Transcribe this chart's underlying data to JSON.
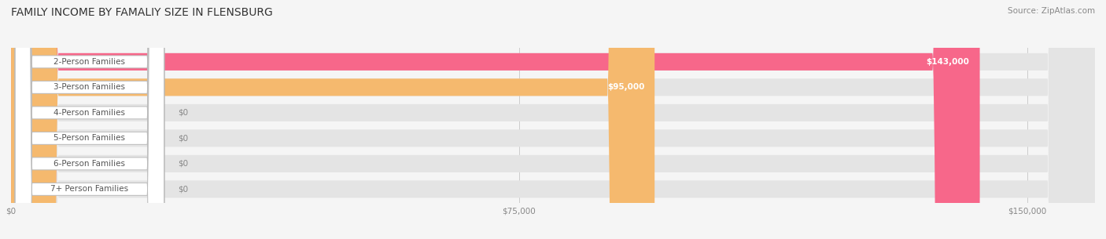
{
  "title": "FAMILY INCOME BY FAMALIY SIZE IN FLENSBURG",
  "source": "Source: ZipAtlas.com",
  "categories": [
    "2-Person Families",
    "3-Person Families",
    "4-Person Families",
    "5-Person Families",
    "6-Person Families",
    "7+ Person Families"
  ],
  "values": [
    143000,
    95000,
    0,
    0,
    0,
    0
  ],
  "bar_colors": [
    "#F7678A",
    "#F5B96E",
    "#F0A0A0",
    "#A8B8E8",
    "#C0A8D8",
    "#88CED8"
  ],
  "label_values": [
    "$143,000",
    "$95,000",
    "$0",
    "$0",
    "$0",
    "$0"
  ],
  "x_ticks": [
    0,
    75000,
    150000
  ],
  "x_tick_labels": [
    "$0",
    "$75,000",
    "$150,000"
  ],
  "xlim": [
    0,
    160000
  ],
  "bg_color": "#f5f5f5",
  "title_fontsize": 10,
  "source_fontsize": 7.5,
  "label_fontsize": 7.5,
  "tick_fontsize": 7.5,
  "bar_height": 0.68
}
